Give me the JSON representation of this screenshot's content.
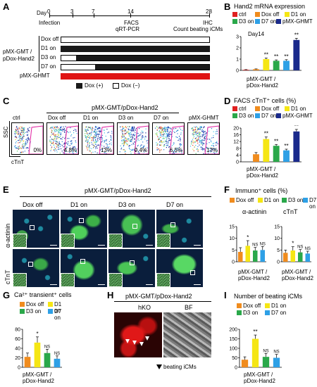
{
  "panels": {
    "A": "A",
    "B": "B",
    "C": "C",
    "D": "D",
    "E": "E",
    "F": "F",
    "G": "G",
    "H": "H",
    "I": "I"
  },
  "colors": {
    "ctrl": "#e02020",
    "dox_off": "#f08c1e",
    "d1": "#f5e614",
    "d3": "#2aa84a",
    "d7": "#2ea0e6",
    "ghmt": "#1a2a8c",
    "black": "#1a1a1a"
  },
  "timeline": {
    "day_label": "Day",
    "days": [
      "0",
      "3",
      "7",
      "14",
      "28"
    ],
    "events": [
      "Infection",
      "FACS",
      "qRT-PCR",
      "IHC",
      "Count beating iCMs"
    ],
    "group_label_1": "pMX-GMT /",
    "group_label_2": "pDox-Hand2",
    "rows": [
      "Dox off",
      "D1 on",
      "D3 on",
      "D7 on"
    ],
    "ghmt_label": "pMX-GHMT",
    "legend_on": "Dox (+)",
    "legend_off": "Dox (−)"
  },
  "legend": {
    "ctrl": "ctrl",
    "dox_off": "Dox off",
    "d1": "D1 on",
    "d3": "D3 on",
    "d7": "D7 on",
    "ghmt": "pMX-GHMT"
  },
  "panel_B": {
    "title": "Hand2 mRNA expression",
    "subtitle": "Day14",
    "xlabel_1": "pMX-GMT /",
    "xlabel_2": "pDox-Hand2",
    "chart_data": {
      "type": "bar",
      "categories": [
        "ctrl",
        "Dox off",
        "D1 on",
        "D3 on",
        "D7 on",
        "pMX-GHMT"
      ],
      "values": [
        0.05,
        0.1,
        1.0,
        0.85,
        0.85,
        2.7
      ],
      "errors": [
        0.02,
        0.03,
        0.1,
        0.08,
        0.1,
        0.15
      ],
      "sig": [
        "",
        "",
        "**",
        "**",
        "**",
        "**"
      ],
      "ylim": [
        0,
        3
      ],
      "yticks": [
        "0",
        "1",
        "2",
        "3"
      ]
    }
  },
  "panel_C": {
    "title_1": "pMX-GMT/pDox-Hand2",
    "ssc": "SSC",
    "ctnt": "cTnT",
    "plots": [
      {
        "label": "ctrl",
        "pct": "0%"
      },
      {
        "label": "Dox off",
        "pct": "4.8%"
      },
      {
        "label": "D1 on",
        "pct": "13%"
      },
      {
        "label": "D3 on",
        "pct": "9.4%"
      },
      {
        "label": "D7 on",
        "pct": "6.5%"
      },
      {
        "label": "pMX-GHMT",
        "pct": "17%"
      }
    ]
  },
  "panel_D": {
    "title": "FACS cTnT⁺ cells (%)",
    "xlabel_1": "pMX-GMT /",
    "xlabel_2": "pDox-Hand2",
    "chart_data": {
      "type": "bar",
      "categories": [
        "ctrl",
        "Dox off",
        "D1 on",
        "D3 on",
        "D7 on",
        "pMX-GHMT"
      ],
      "values": [
        0,
        4.5,
        13.5,
        9.5,
        6.8,
        18
      ],
      "errors": [
        0,
        1,
        1.2,
        0.8,
        0.7,
        1.2
      ],
      "sig": [
        "",
        "",
        "**",
        "**",
        "**",
        "**"
      ],
      "ylim": [
        0,
        20
      ],
      "yticks": [
        "0",
        "4",
        "8",
        "12",
        "16",
        "20"
      ]
    }
  },
  "panel_E": {
    "title": "pMX-GMT/pDox-Hand2",
    "cols": [
      "Dox off",
      "D1 on",
      "D3 on",
      "D7 on"
    ],
    "rows": [
      "α-actinin",
      "cTnT"
    ]
  },
  "panel_F": {
    "title": "Immuno⁺ cells (%)",
    "charts": [
      {
        "title": "α-actinin",
        "chart_data": {
          "type": "bar",
          "categories": [
            "Dox off",
            "D1 on",
            "D3 on",
            "D7 on"
          ],
          "values": [
            4.2,
            6.8,
            4.8,
            5.0
          ],
          "errors": [
            1.8,
            2.2,
            1.3,
            1.5
          ],
          "sig": [
            "",
            "*",
            "NS",
            "NS"
          ],
          "ylim": [
            0,
            15
          ],
          "yticks": [
            "0",
            "5",
            "10",
            "15"
          ]
        }
      },
      {
        "title": "cTnT",
        "chart_data": {
          "type": "bar",
          "categories": [
            "Dox off",
            "D1 on",
            "D3 on",
            "D7 on"
          ],
          "values": [
            3.8,
            4.8,
            4.0,
            3.5
          ],
          "errors": [
            1.2,
            1.6,
            1.2,
            1.0
          ],
          "sig": [
            "",
            "*",
            "NS",
            "NS"
          ],
          "ylim": [
            0,
            15
          ],
          "yticks": [
            "0",
            "5",
            "10",
            "15"
          ]
        }
      }
    ],
    "xlabel_1": "pMX-GMT /",
    "xlabel_2": "pDox-Hand2"
  },
  "panel_G": {
    "title": "Ca²⁺ transient⁺ cells",
    "xlabel_1": "pMX-GMT /",
    "xlabel_2": "pDox-Hand2",
    "chart_data": {
      "type": "bar",
      "categories": [
        "Dox off",
        "D1 on",
        "D3 on",
        "D7 on"
      ],
      "values": [
        22,
        52,
        30,
        18
      ],
      "errors": [
        8,
        12,
        8,
        6
      ],
      "sig": [
        "",
        "*",
        "NS",
        "NS"
      ],
      "ylim": [
        0,
        80
      ],
      "yticks": [
        "0",
        "20",
        "40",
        "60",
        "80"
      ]
    }
  },
  "panel_H": {
    "title": "pMX-GMT/pDox-Hand2",
    "img1": "hKO",
    "img2": "BF",
    "caption": "beating iCMs"
  },
  "panel_I": {
    "title": "Number of beating iCMs",
    "xlabel_1": "pMX-GMT /",
    "xlabel_2": "pDox-Hand2",
    "chart_data": {
      "type": "bar",
      "categories": [
        "Dox off",
        "D1 on",
        "D3 on",
        "D7 on"
      ],
      "values": [
        40,
        150,
        55,
        50
      ],
      "errors": [
        15,
        20,
        18,
        18
      ],
      "sig": [
        "",
        "**",
        "NS",
        "NS"
      ],
      "ylim": [
        0,
        200
      ],
      "yticks": [
        "0",
        "50",
        "100",
        "150",
        "200"
      ]
    }
  }
}
